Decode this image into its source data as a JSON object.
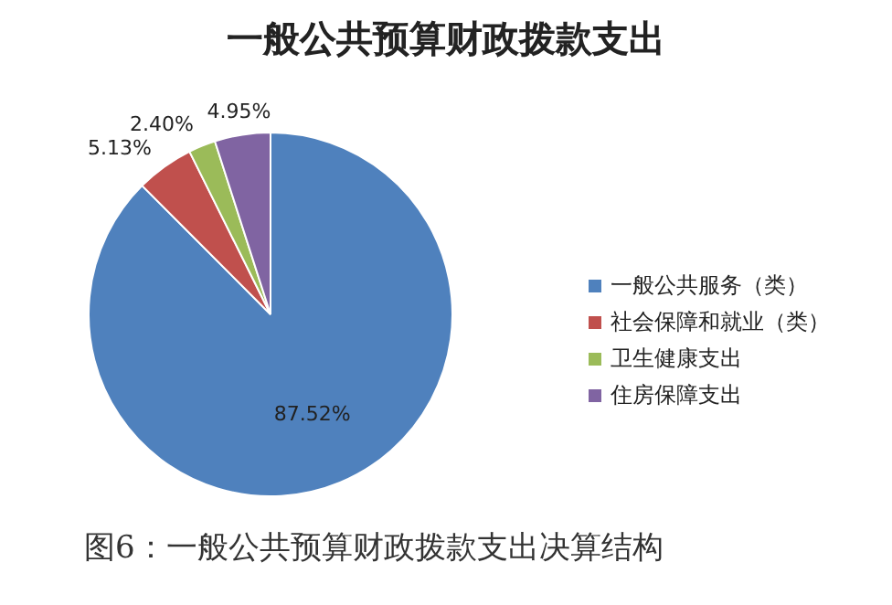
{
  "chart_data": {
    "type": "pie",
    "title": "一般公共预算财政拨款支出",
    "categories": [
      "一般公共服务（类）",
      "社会保障和就业（类）",
      "卫生健康支出",
      "住房保障支出"
    ],
    "values": [
      87.52,
      5.13,
      2.4,
      4.95
    ],
    "value_labels": [
      "87.52%",
      "5.13%",
      "2.40%",
      "4.95%"
    ],
    "colors": [
      "#4f81bd",
      "#c0504d",
      "#9bbb59",
      "#8064a2"
    ],
    "legend": "right",
    "annotations": [
      "图6：一般公共预算财政拨款支出决算结构"
    ]
  }
}
